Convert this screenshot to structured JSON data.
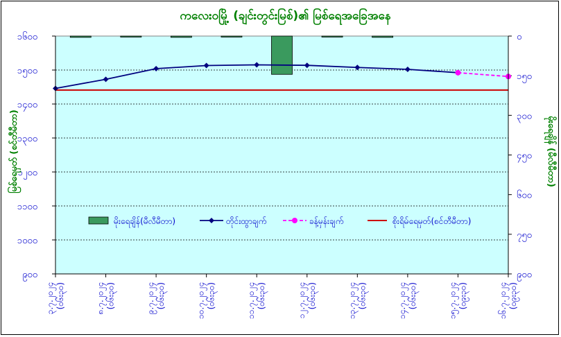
{
  "chart_data": {
    "type": "bar+line",
    "title": "ကလေးဝမြို့ (ချင်းတွင်းမြစ်)၏ မြစ်ရေအခြေအနေ",
    "ylabel_left": "မြစ်ရေမှတ် (စင်တီမီတာ)",
    "ylabel_right": "မိုးရေချိန် (မီလီမီတာ)",
    "ylim_left": [
      900,
      1900
    ],
    "ylim_right": [
      900,
      0
    ],
    "y_ticks_left": [
      "၉၀၀",
      "၁၀၀၀",
      "၁၁၀၀",
      "၁၂၀၀",
      "၁၃၀၀",
      "၁၄၀၀",
      "၁၅၀၀",
      "၁၆၀၀"
    ],
    "y_ticks_right": [
      "၀",
      "၁၅၀",
      "၃၀၀",
      "၄၅၀",
      "၆၀၀",
      "၇၅၀",
      "၉၀၀"
    ],
    "categories": [
      [
        "၃.၇.၂၀၂၄",
        "(၀၆း၃၀)"
      ],
      [
        "၈.၇.၂၀၂၄",
        "(၀၆း၃၀)"
      ],
      [
        "၉.၇.၂၀၂၄",
        "(၀၆း၃၀)"
      ],
      [
        "၁၀.၇.၂၀၂၄",
        "(၀၆း၃၀)"
      ],
      [
        "၁၁.၇.၂၀၂၄",
        "(၀၆း၃၀)"
      ],
      [
        "၁၂.၇.၂၀၂၄",
        "(၀၆း၃၀)"
      ],
      [
        "၁၃.၇.၂၀၂၄",
        "(၀၆း၃၀)"
      ],
      [
        "၁၄.၇.၂၀၂၄",
        "(၀၆း၃၀)"
      ],
      [
        "၁၅.၇.၂၀၂၄",
        "(၀၉း၃၀)"
      ],
      [
        "၁၆.၇.၂၀၂၄",
        "(၀၉း၃၀)"
      ]
    ],
    "series": [
      {
        "name": "မိုးရေချိန်(မီလီမီတာ)",
        "type": "bar",
        "axis": "right",
        "color": "#3a9a5e",
        "values": [
          5,
          0,
          5,
          0,
          145,
          0,
          5,
          null,
          null,
          null
        ]
      },
      {
        "name": "တိုင်းထွာချက်",
        "type": "line",
        "axis": "left",
        "color": "#00007f",
        "marker": "diamond",
        "values": [
          1680,
          1718,
          1763,
          1776,
          1779,
          1777,
          1768,
          1760,
          1746,
          null
        ]
      },
      {
        "name": "ခန့်မှန်းချက်",
        "type": "line",
        "axis": "left",
        "color": "#ff00ff",
        "dash": true,
        "marker": "circle",
        "values": [
          null,
          null,
          null,
          null,
          null,
          null,
          null,
          null,
          1746,
          1730
        ]
      },
      {
        "name": "စိုးရိမ်ရေမှတ်(စင်တီမီတာ)",
        "type": "hline",
        "axis": "left",
        "color": "#cc0000",
        "value": 1673
      }
    ],
    "legend_position": "inside-center",
    "grid": "horizontal-dashed",
    "colors": {
      "plot_bg": "#ccffff",
      "title": "#008000",
      "axis_text": "#0000cc",
      "axis_label": "#008000",
      "grid": "#000000"
    }
  }
}
